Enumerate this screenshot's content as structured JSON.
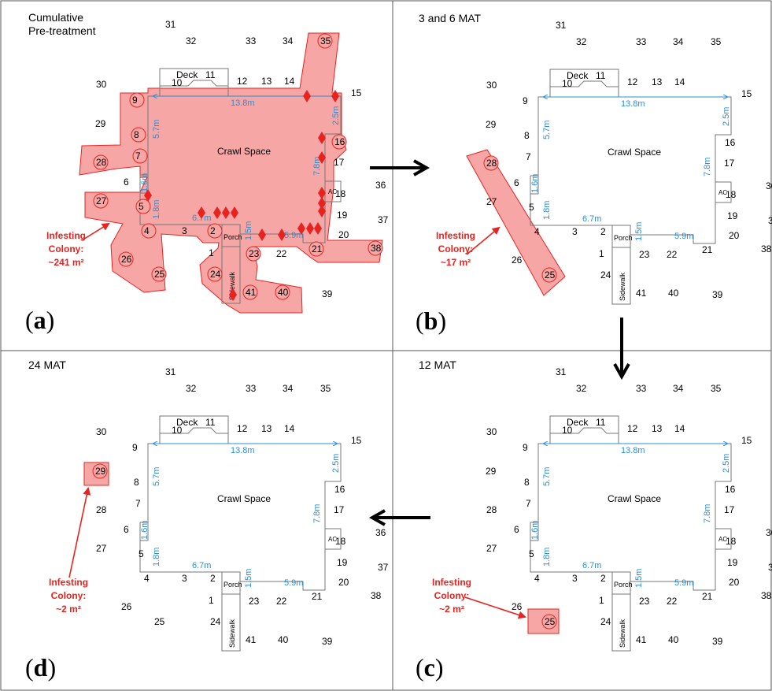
{
  "panels": [
    {
      "key": "a",
      "title_lines": [
        "Cumulative",
        "Pre-treatment"
      ],
      "letter": "a",
      "colony_lines": [
        "Infesting",
        "Colony:",
        "~241 m²"
      ],
      "infested_stations": [
        "35",
        "9",
        "8",
        "7",
        "28",
        "16",
        "27",
        "5",
        "4",
        "2",
        "26",
        "25",
        "24",
        "23",
        "21",
        "38",
        "41",
        "40"
      ]
    },
    {
      "key": "b",
      "title_lines": [
        "3 and 6 MAT"
      ],
      "letter": "b",
      "colony_lines": [
        "Infesting",
        "Colony:",
        "~17 m²"
      ],
      "infested_stations": [
        "28",
        "25"
      ]
    },
    {
      "key": "c",
      "title_lines": [
        "12 MAT"
      ],
      "letter": "c",
      "colony_lines": [
        "Infesting",
        "Colony:",
        "~2 m²"
      ],
      "infested_stations": [
        "25"
      ]
    },
    {
      "key": "d",
      "title_lines": [
        "24 MAT"
      ],
      "letter": "d",
      "colony_lines": [
        "Infesting",
        "Colony:",
        "~2 m²"
      ],
      "infested_stations": [
        "29"
      ]
    }
  ],
  "house": {
    "deck": "Deck",
    "crawl_space": "Crawl Space",
    "porch": "Porch",
    "sidewalk": "Sidewalk",
    "ac": "AC",
    "dims": {
      "top": "13.8m",
      "left_upper": "5.7m",
      "left_mid": "1.6m",
      "left_lower": "1.8m",
      "bottom_left": "6.7m",
      "porch": "1.5m",
      "bottom_right": "5.9m",
      "right_upper": "2.5m",
      "right_lower": "7.8m"
    }
  },
  "stations": [
    "1",
    "2",
    "3",
    "4",
    "5",
    "6",
    "7",
    "8",
    "9",
    "10",
    "11",
    "12",
    "13",
    "14",
    "15",
    "16",
    "17",
    "18",
    "19",
    "20",
    "21",
    "22",
    "23",
    "24",
    "25",
    "26",
    "27",
    "28",
    "29",
    "30",
    "31",
    "32",
    "33",
    "34",
    "35",
    "36",
    "37",
    "38",
    "39",
    "40",
    "41"
  ],
  "colors": {
    "infestation_fill": "#f7a6a6",
    "infestation_stroke": "#e8231f",
    "dimension_text": "#2b8fd4",
    "arrow": "#000000",
    "annotation": "#e8231f"
  }
}
